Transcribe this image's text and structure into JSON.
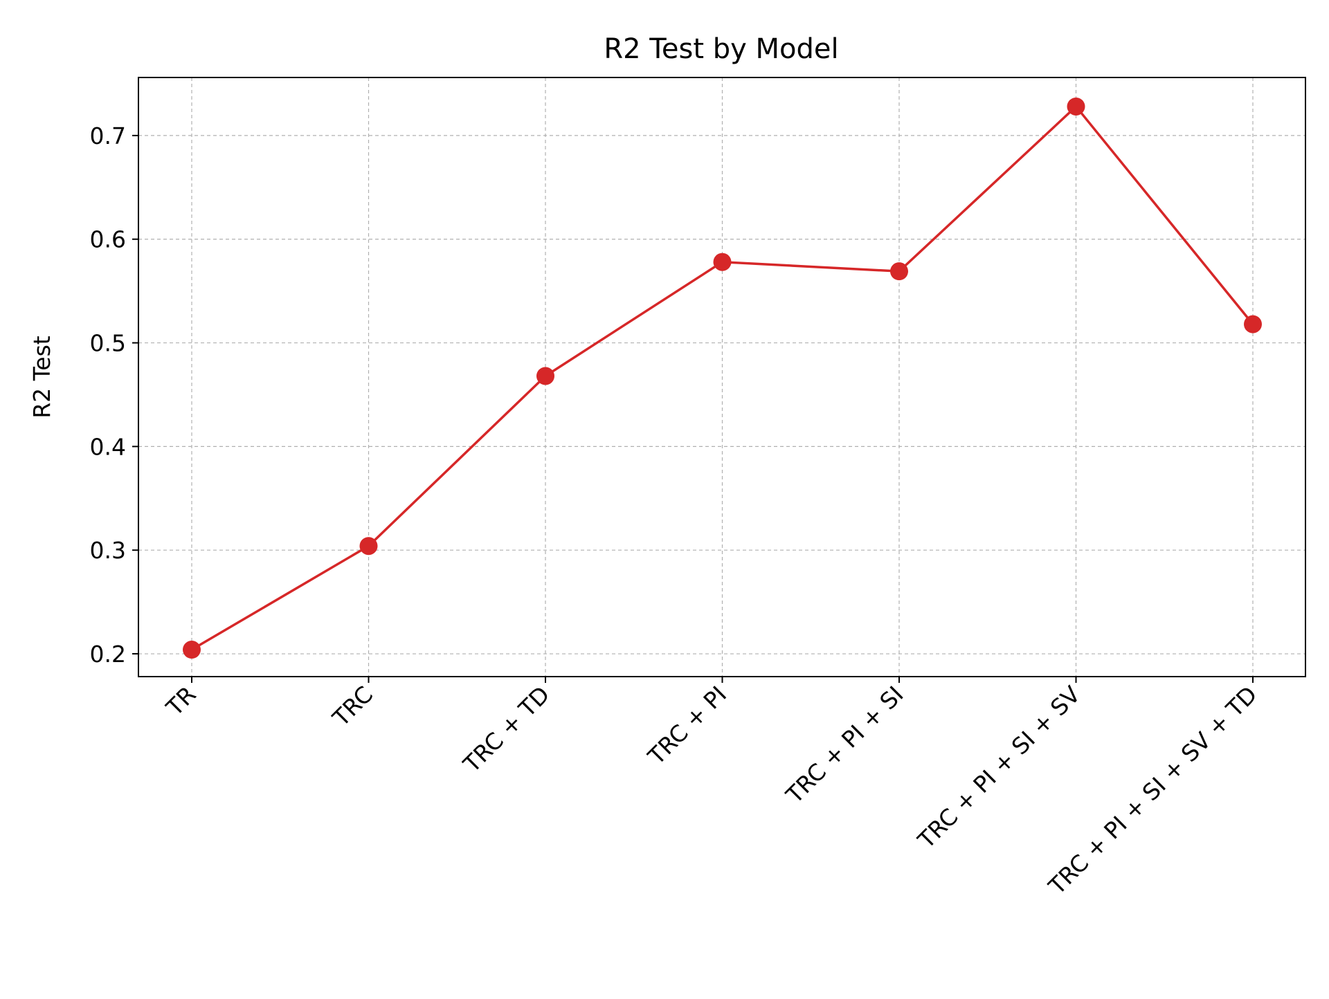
{
  "colors": {
    "line": "#d62728",
    "marker": "#d62728",
    "grid": "#b0b0b0",
    "axes": "#000000",
    "background": "#ffffff"
  },
  "chart_data": {
    "type": "line",
    "title": "R2 Test by Model",
    "xlabel": "",
    "ylabel": "R2 Test",
    "categories": [
      "TR",
      "TRC",
      "TRC + TD",
      "TRC + PI",
      "TRC + PI + SI",
      "TRC + PI + SI + SV",
      "TRC + PI + SI + SV + TD"
    ],
    "series": [
      {
        "values": [
          0.204,
          0.304,
          0.468,
          0.578,
          0.569,
          0.728,
          0.518
        ]
      }
    ],
    "ylim": [
      0.178,
      0.756
    ],
    "yticks": [
      0.2,
      0.3,
      0.4,
      0.5,
      0.6,
      0.7
    ],
    "ytick_labels": [
      "0.2",
      "0.3",
      "0.4",
      "0.5",
      "0.6",
      "0.7"
    ],
    "grid": true,
    "grid_style": "dashed",
    "markers": "circle"
  }
}
